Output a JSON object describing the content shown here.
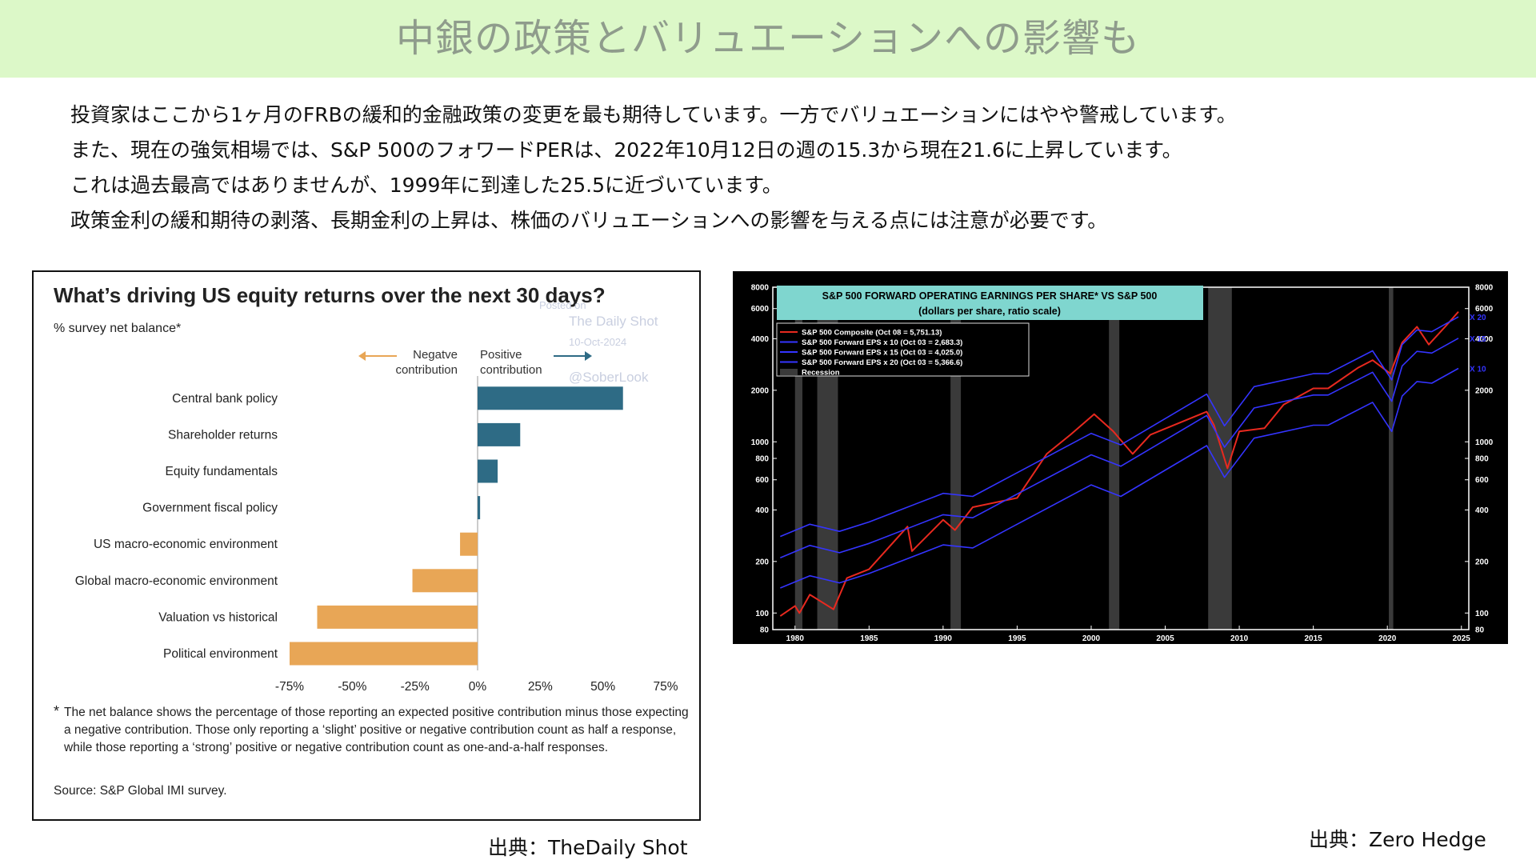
{
  "page": {
    "title": "中銀の政策とバリュエーションへの影響も",
    "paragraphs": [
      "投資家はここから1ヶ月のFRBの緩和的金融政策の変更を最も期待しています。一方でバリュエーションにはやや警戒しています。",
      "また、現在の強気相場では、S&P 500のフォワードPERは、2022年10月12日の週の15.3から現在21.6に上昇しています。",
      "これは過去最高ではありませんが、1999年に到達した25.5に近づいています。",
      "政策金利の緩和期待の剥落、長期金利の上昇は、株価のバリュエーションへの影響を与える点には注意が必要です。"
    ],
    "source_left": "出典：TheDaily Shot",
    "source_right": "出典：Zero Hedge"
  },
  "left_chart": {
    "watermark": {
      "posted": "Posted on",
      "site": "The Daily Shot",
      "date": "10-Oct-2024",
      "handle": "@SoberLook"
    },
    "legend_negative": "Negatve contribution",
    "legend_positive": "Positive contribution",
    "footnote_star": "*",
    "footnote": "The net balance shows the percentage of those reporting an expected positive contribution minus those expecting a negative contribution. Those only reporting a ‘slight’ positive or negative contribution count as half a response, while those reporting a ‘strong’ positive or negative contribution count as one-and-a-half responses.",
    "source": "Source: S&P Global IMI survey.",
    "colors": {
      "positive": "#2e6b85",
      "negative": "#e8a656"
    }
  },
  "right_chart": {
    "title_line1": "S&P 500 FORWARD OPERATING EARNINGS PER SHARE* VS S&P 500",
    "title_line2": "(dollars per share, ratio scale)",
    "legend": [
      {
        "label": "S&P 500 Composite (Oct 08 = 5,751.13)",
        "color": "#e8291f"
      },
      {
        "label": "S&P 500 Forward EPS x 10 (Oct 03 = 2,683.3)",
        "color": "#3434ff"
      },
      {
        "label": "S&P 500 Forward EPS x 15 (Oct 03 = 4,025.0)",
        "color": "#3434ff"
      },
      {
        "label": "S&P 500 Forward EPS x 20 (Oct 03 = 5,366.6)",
        "color": "#3434ff"
      },
      {
        "label": "Recession",
        "color": "#3a3a3a"
      }
    ],
    "line_tags": [
      "X 20",
      "X 15",
      "X 10"
    ]
  },
  "chart_data": [
    {
      "type": "bar",
      "orientation": "horizontal",
      "title": "What’s driving US equity returns over the next 30 days?",
      "subtitle": "% survey net balance*",
      "categories": [
        "Central bank policy",
        "Shareholder returns",
        "Equity fundamentals",
        "Government fiscal policy",
        "US macro-economic environment",
        "Global macro-economic environment",
        "Valuation vs historical",
        "Political environment"
      ],
      "values": [
        58,
        17,
        8,
        1,
        -7,
        -26,
        -64,
        -75
      ],
      "xlim": [
        -75,
        75
      ],
      "x_ticks": [
        -75,
        -50,
        -25,
        0,
        25,
        50,
        75
      ],
      "x_tick_labels": [
        "-75%",
        "-50%",
        "-25%",
        "0%",
        "25%",
        "50%",
        "75%"
      ],
      "grid": false
    },
    {
      "type": "line",
      "title": "S&P 500 FORWARD OPERATING EARNINGS PER SHARE* VS S&P 500",
      "subtitle": "(dollars per share, ratio scale)",
      "y_scale": "log",
      "ylim": [
        80,
        8000
      ],
      "y_ticks": [
        80,
        100,
        200,
        400,
        600,
        800,
        1000,
        2000,
        4000,
        6000,
        8000
      ],
      "x_ticks": [
        1980,
        1985,
        1990,
        1995,
        2000,
        2005,
        2010,
        2015,
        2020,
        2025
      ],
      "xlim": [
        1978.5,
        2025.5
      ],
      "recessions": [
        [
          1980.0,
          1980.5
        ],
        [
          1981.5,
          1982.9
        ],
        [
          1990.5,
          1991.2
        ],
        [
          2001.2,
          2001.9
        ],
        [
          2007.9,
          2009.5
        ],
        [
          2020.1,
          2020.4
        ]
      ],
      "series": [
        {
          "name": "S&P 500 Composite (Oct 08 = 5,751.13)",
          "x": [
            1979,
            1980,
            1980.3,
            1981,
            1982.6,
            1983.5,
            1985,
            1987.6,
            1987.9,
            1990,
            1990.8,
            1992,
            1995,
            1997,
            1998.6,
            2000.2,
            2001.5,
            2002.8,
            2004,
            2007.8,
            2008.3,
            2009.2,
            2010,
            2011.7,
            2013,
            2015,
            2016,
            2018,
            2019,
            2020.2,
            2021,
            2022,
            2022.8,
            2024,
            2024.8
          ],
          "y": [
            96,
            110,
            100,
            128,
            105,
            160,
            180,
            320,
            230,
            350,
            305,
            415,
            470,
            850,
            1100,
            1450,
            1150,
            850,
            1100,
            1500,
            1250,
            700,
            1150,
            1200,
            1650,
            2050,
            2050,
            2700,
            3000,
            2500,
            3800,
            4700,
            3700,
            4800,
            5751
          ]
        },
        {
          "name": "S&P 500 Forward EPS x 10 (Oct 03 = 2,683.3)",
          "x": [
            1979,
            1981,
            1983,
            1985,
            1990,
            1992,
            1995,
            2000,
            2002,
            2007.8,
            2009,
            2011,
            2015,
            2016,
            2019,
            2020.3,
            2021,
            2022,
            2023,
            2024.8
          ],
          "y": [
            140,
            165,
            150,
            170,
            250,
            240,
            330,
            560,
            480,
            950,
            620,
            1050,
            1250,
            1250,
            1700,
            1150,
            1850,
            2250,
            2200,
            2683
          ]
        },
        {
          "name": "S&P 500 Forward EPS x 15 (Oct 03 = 4,025.0)",
          "x": [
            1979,
            1981,
            1983,
            1985,
            1990,
            1992,
            1995,
            2000,
            2002,
            2007.8,
            2009,
            2011,
            2015,
            2016,
            2019,
            2020.3,
            2021,
            2022,
            2023,
            2024.8
          ],
          "y": [
            210,
            248,
            225,
            255,
            375,
            360,
            495,
            840,
            720,
            1425,
            930,
            1575,
            1875,
            1875,
            2550,
            1725,
            2775,
            3375,
            3300,
            4025
          ]
        },
        {
          "name": "S&P 500 Forward EPS x 20 (Oct 03 = 5,366.6)",
          "x": [
            1979,
            1981,
            1983,
            1985,
            1990,
            1992,
            1995,
            2000,
            2002,
            2007.8,
            2009,
            2011,
            2015,
            2016,
            2019,
            2020.3,
            2021,
            2022,
            2023,
            2024.8
          ],
          "y": [
            280,
            330,
            300,
            340,
            500,
            480,
            660,
            1120,
            960,
            1900,
            1240,
            2100,
            2500,
            2500,
            3400,
            2300,
            3700,
            4500,
            4400,
            5366
          ]
        }
      ]
    }
  ]
}
